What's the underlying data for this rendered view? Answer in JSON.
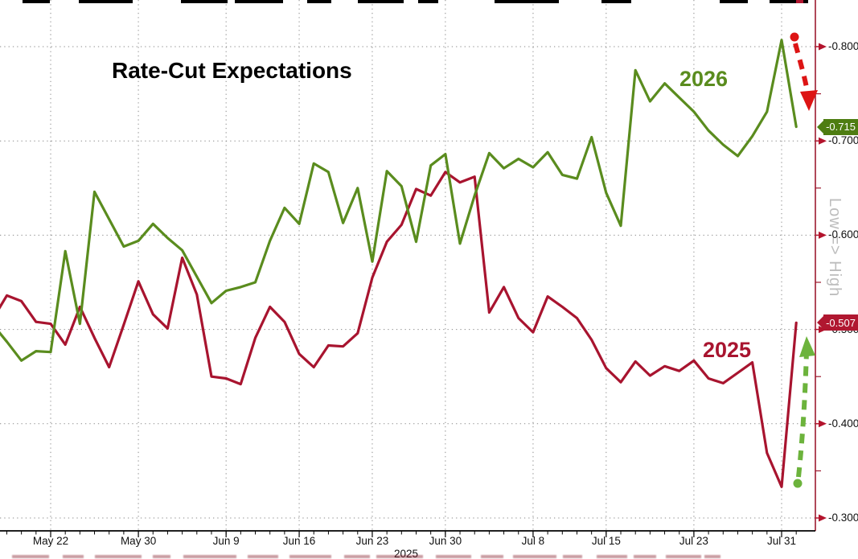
{
  "title": "Rate-Cut Expectations",
  "right_axis_note": "Low => High",
  "year_label": "2025",
  "colors": {
    "line_2026": "#5a8c1e",
    "line_2025": "#a8142f",
    "badge_2026": "#4e7d12",
    "badge_2025": "#b01730",
    "right_axis": "#9c1b30",
    "tick_marker": "#b3132c",
    "bottom_axis": "#000000",
    "grid": "#8a8a8a",
    "arrow_red": "#dd1414",
    "arrow_green": "#6cb33c"
  },
  "y_axis": {
    "ticks": [
      {
        "label": "-0.800",
        "value": -0.8
      },
      {
        "label": "-0.700",
        "value": -0.7
      },
      {
        "label": "-0.600",
        "value": -0.6
      },
      {
        "label": "-0.500",
        "value": -0.5
      },
      {
        "label": "-0.400",
        "value": -0.4
      },
      {
        "label": "-0.300",
        "value": -0.3
      }
    ],
    "minor_ticks": [
      -0.75,
      -0.65,
      -0.55,
      -0.45,
      -0.35
    ]
  },
  "x_axis": {
    "ticks": [
      {
        "label": "May 22",
        "day_index": 4
      },
      {
        "label": "May 30",
        "day_index": 10
      },
      {
        "label": "Jun 9",
        "day_index": 16
      },
      {
        "label": "Jun 16",
        "day_index": 21
      },
      {
        "label": "Jun 23",
        "day_index": 26
      },
      {
        "label": "Jun 30",
        "day_index": 31
      },
      {
        "label": "Jul 8",
        "day_index": 37
      },
      {
        "label": "Jul 15",
        "day_index": 42
      },
      {
        "label": "Jul 23",
        "day_index": 48
      },
      {
        "label": "Jul 31",
        "day_index": 54
      }
    ]
  },
  "badges": [
    {
      "label": "-0.715",
      "value": -0.715,
      "series": "2026"
    },
    {
      "label": "-0.507",
      "value": -0.507,
      "series": "2025"
    }
  ],
  "series_labels": {
    "s2026": "2026",
    "s2025": "2025"
  },
  "chart_data": {
    "type": "line",
    "title": "Rate-Cut Expectations",
    "x": [
      "May 16",
      "May 19",
      "May 20",
      "May 21",
      "May 22",
      "May 23",
      "May 26",
      "May 27",
      "May 28",
      "May 29",
      "May 30",
      "Jun 2",
      "Jun 3",
      "Jun 4",
      "Jun 5",
      "Jun 6",
      "Jun 9",
      "Jun 10",
      "Jun 11",
      "Jun 12",
      "Jun 13",
      "Jun 16",
      "Jun 17",
      "Jun 18",
      "Jun 19",
      "Jun 20",
      "Jun 23",
      "Jun 24",
      "Jun 25",
      "Jun 26",
      "Jun 27",
      "Jun 30",
      "Jul 1",
      "Jul 2",
      "Jul 3",
      "Jul 4",
      "Jul 7",
      "Jul 8",
      "Jul 9",
      "Jul 10",
      "Jul 11",
      "Jul 14",
      "Jul 15",
      "Jul 16",
      "Jul 17",
      "Jul 18",
      "Jul 21",
      "Jul 22",
      "Jul 23",
      "Jul 24",
      "Jul 25",
      "Jul 28",
      "Jul 29",
      "Jul 30",
      "Jul 31",
      "Aug 1"
    ],
    "series": [
      {
        "name": "2025",
        "color": "#a8142f",
        "values": [
          -0.51,
          -0.536,
          -0.53,
          -0.508,
          -0.506,
          -0.484,
          -0.524,
          -0.491,
          -0.46,
          -0.505,
          -0.551,
          -0.516,
          -0.501,
          -0.576,
          -0.537,
          -0.45,
          -0.448,
          -0.442,
          -0.491,
          -0.524,
          -0.508,
          -0.474,
          -0.46,
          -0.483,
          -0.482,
          -0.496,
          -0.555,
          -0.593,
          -0.611,
          -0.649,
          -0.642,
          -0.667,
          -0.656,
          -0.662,
          -0.518,
          -0.545,
          -0.512,
          -0.497,
          -0.535,
          -0.524,
          -0.512,
          -0.489,
          -0.459,
          -0.444,
          -0.466,
          -0.451,
          -0.461,
          -0.456,
          -0.467,
          -0.448,
          -0.443,
          -0.454,
          -0.465,
          -0.369,
          -0.333,
          -0.507
        ]
      },
      {
        "name": "2026",
        "color": "#5a8c1e",
        "values": [
          -0.506,
          -0.487,
          -0.467,
          -0.477,
          -0.476,
          -0.583,
          -0.506,
          -0.646,
          -0.617,
          -0.588,
          -0.594,
          -0.612,
          -0.597,
          -0.584,
          -0.556,
          -0.528,
          -0.541,
          -0.545,
          -0.55,
          -0.594,
          -0.629,
          -0.612,
          -0.676,
          -0.667,
          -0.613,
          -0.65,
          -0.572,
          -0.668,
          -0.652,
          -0.593,
          -0.674,
          -0.686,
          -0.591,
          -0.642,
          -0.687,
          -0.671,
          -0.681,
          -0.672,
          -0.688,
          -0.664,
          -0.66,
          -0.704,
          -0.645,
          -0.61,
          -0.775,
          -0.742,
          -0.761,
          -0.746,
          -0.731,
          -0.711,
          -0.696,
          -0.684,
          -0.705,
          -0.731,
          -0.807,
          -0.715
        ]
      }
    ],
    "ylabel": "Low => High",
    "ylim": [
      -0.3,
      -0.82
    ],
    "y_axis_inverted_note": "more negative (more cuts priced) plotted higher",
    "grid": true,
    "legend_position": "inline-labels",
    "annotations": [
      {
        "type": "arrow",
        "color": "red-dashed",
        "near_series": "2026",
        "from_value": -0.807,
        "to_value": -0.72,
        "direction": "down"
      },
      {
        "type": "arrow",
        "color": "green-dashed",
        "near_series": "2025",
        "from_value": -0.335,
        "to_value": -0.5,
        "direction": "up"
      },
      {
        "type": "last_value_badge",
        "series": "2026",
        "label": "-0.715"
      },
      {
        "type": "last_value_badge",
        "series": "2025",
        "label": "-0.507"
      }
    ]
  },
  "artifacts": {
    "top_black": [
      [
        28,
        34
      ],
      [
        98,
        67
      ],
      [
        225,
        58
      ],
      [
        292,
        60
      ],
      [
        382,
        30
      ],
      [
        445,
        57
      ],
      [
        520,
        25
      ],
      [
        615,
        80
      ],
      [
        748,
        37
      ],
      [
        895,
        35
      ],
      [
        957,
        48
      ]
    ],
    "top_red": [
      [
        990,
        9
      ]
    ],
    "bottom_faint": [
      [
        15,
        46
      ],
      [
        78,
        26
      ],
      [
        118,
        58
      ],
      [
        190,
        22
      ],
      [
        228,
        66
      ],
      [
        308,
        38
      ],
      [
        360,
        52
      ],
      [
        428,
        32
      ],
      [
        468,
        58
      ],
      [
        542,
        44
      ],
      [
        598,
        28
      ],
      [
        638,
        54
      ],
      [
        700,
        24
      ],
      [
        742,
        38
      ],
      [
        788,
        28
      ],
      [
        828,
        44
      ],
      [
        876,
        20
      ]
    ]
  }
}
